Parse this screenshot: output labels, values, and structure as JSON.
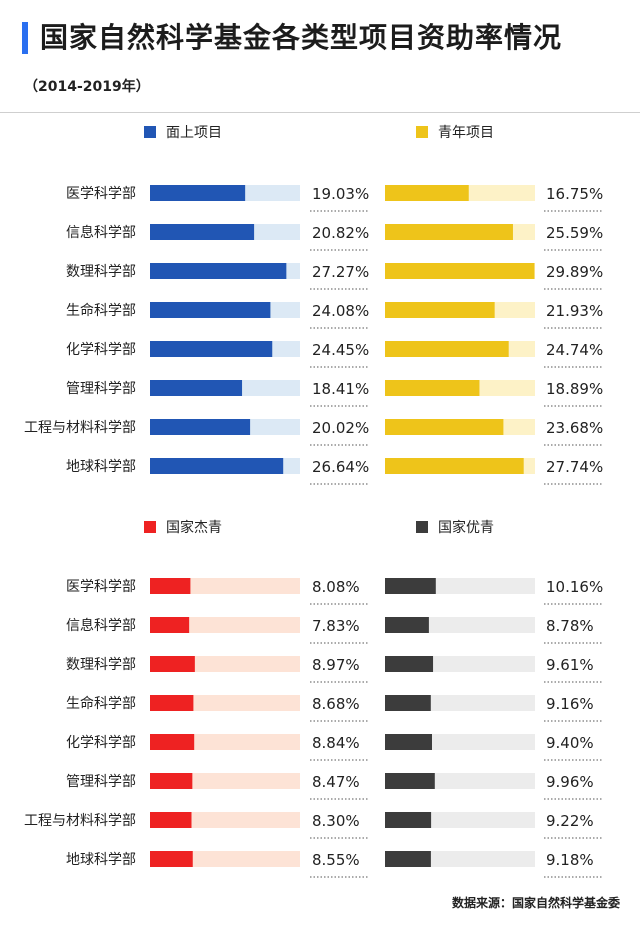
{
  "header": {
    "title": "国家自然科学基金各类型项目资助率情况",
    "subtitle": "（2014-2019年）",
    "accent_color": "#2a6ff0"
  },
  "footer": {
    "source": "数据来源：国家自然科学基金委"
  },
  "chart_data": [
    {
      "type": "bar",
      "orientation": "horizontal",
      "panel": "top-left",
      "legend": "面上项目",
      "color": "#2156b4",
      "track_color": "#dce9f5",
      "categories": [
        "医学科学部",
        "信息科学部",
        "数理科学部",
        "生命科学部",
        "化学科学部",
        "管理科学部",
        "工程与材料科学部",
        "地球科学部"
      ],
      "values": [
        19.03,
        20.82,
        27.27,
        24.08,
        24.45,
        18.41,
        20.02,
        26.64
      ],
      "labels": [
        "19.03%",
        "20.82%",
        "27.27%",
        "24.08%",
        "24.45%",
        "18.41%",
        "20.02%",
        "26.64%"
      ],
      "xlim": [
        0,
        30
      ]
    },
    {
      "type": "bar",
      "orientation": "horizontal",
      "panel": "top-right",
      "legend": "青年项目",
      "color": "#eec41a",
      "track_color": "#fdf2c7",
      "categories": [
        "医学科学部",
        "信息科学部",
        "数理科学部",
        "生命科学部",
        "化学科学部",
        "管理科学部",
        "工程与材料科学部",
        "地球科学部"
      ],
      "values": [
        16.75,
        25.59,
        29.89,
        21.93,
        24.74,
        18.89,
        23.68,
        27.74
      ],
      "labels": [
        "16.75%",
        "25.59%",
        "29.89%",
        "21.93%",
        "24.74%",
        "18.89%",
        "23.68%",
        "27.74%"
      ],
      "xlim": [
        0,
        30
      ]
    },
    {
      "type": "bar",
      "orientation": "horizontal",
      "panel": "bottom-left",
      "legend": "国家杰青",
      "color": "#ee2222",
      "track_color": "#fde3d6",
      "categories": [
        "医学科学部",
        "信息科学部",
        "数理科学部",
        "生命科学部",
        "化学科学部",
        "管理科学部",
        "工程与材料科学部",
        "地球科学部"
      ],
      "values": [
        8.08,
        7.83,
        8.97,
        8.68,
        8.84,
        8.47,
        8.3,
        8.55
      ],
      "labels": [
        "8.08%",
        "7.83%",
        "8.97%",
        "8.68%",
        "8.84%",
        "8.47%",
        "8.30%",
        "8.55%"
      ],
      "xlim": [
        0,
        30
      ]
    },
    {
      "type": "bar",
      "orientation": "horizontal",
      "panel": "bottom-right",
      "legend": "国家优青",
      "color": "#3c3c3c",
      "track_color": "#ececec",
      "categories": [
        "医学科学部",
        "信息科学部",
        "数理科学部",
        "生命科学部",
        "化学科学部",
        "管理科学部",
        "工程与材料科学部",
        "地球科学部"
      ],
      "values": [
        10.16,
        8.78,
        9.61,
        9.16,
        9.4,
        9.96,
        9.22,
        9.18
      ],
      "labels": [
        "10.16%",
        "8.78%",
        "9.61%",
        "9.16%",
        "9.40%",
        "9.96%",
        "9.22%",
        "9.18%"
      ],
      "xlim": [
        0,
        30
      ]
    }
  ]
}
